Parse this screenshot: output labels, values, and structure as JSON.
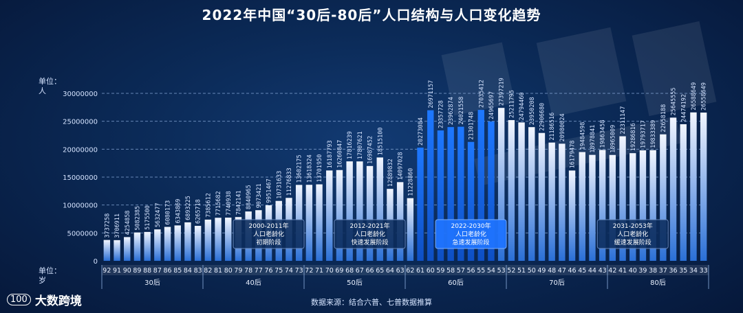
{
  "title": "2022年中国“30后-80后”人口结构与人口变化趋势",
  "y_unit": [
    "单位：",
    "人"
  ],
  "x_unit": [
    "单位：",
    "岁"
  ],
  "source": "数据来源：结合六普、七普数据推算",
  "logo": {
    "mark": "100",
    "name": "大数跨境"
  },
  "colors": {
    "bar_light": "#f2f6ff",
    "bar_dark": "#2a6fd6",
    "bar_highlight": "#1e78ff",
    "grid": "#8fb0e0",
    "text": "#d6e4ff",
    "annot_bg": "#0c2c5c",
    "annot_highlight": "#1f74ff"
  },
  "chart_data": {
    "type": "bar",
    "title": "2022年中国“30后-80后”人口结构与人口变化趋势",
    "ylabel": "人",
    "xlabel": "岁",
    "ylim": [
      0,
      30000000
    ],
    "yticks": [
      0,
      5000000,
      10000000,
      15000000,
      20000000,
      25000000,
      30000000
    ],
    "categories": [
      "92",
      "91",
      "90",
      "89",
      "88",
      "87",
      "86",
      "85",
      "84",
      "83",
      "82",
      "81",
      "80",
      "79",
      "78",
      "77",
      "76",
      "75",
      "74",
      "73",
      "72",
      "71",
      "70",
      "69",
      "68",
      "67",
      "66",
      "65",
      "64",
      "63",
      "62",
      "61",
      "60",
      "59",
      "58",
      "57",
      "56",
      "55",
      "54",
      "53",
      "52",
      "51",
      "50",
      "49",
      "48",
      "47",
      "46",
      "45",
      "44",
      "43",
      "42",
      "41",
      "40",
      "39",
      "38",
      "37",
      "36",
      "35",
      "34",
      "33"
    ],
    "values": [
      3737258,
      3706911,
      4254858,
      5082385,
      5175500,
      5632477,
      6080173,
      6343869,
      6893225,
      6265718,
      7385612,
      7715682,
      7740938,
      7842141,
      8840965,
      9073421,
      9951467,
      10731633,
      11276833,
      13602175,
      13618324,
      13701950,
      16187793,
      16260847,
      17816239,
      17807621,
      16987452,
      18515100,
      12889832,
      14097028,
      11228860,
      20273084,
      26971157,
      23357728,
      23962874,
      24021558,
      21301748,
      27035412,
      24965697,
      27397219,
      25211795,
      24794460,
      23950208,
      22906680,
      21186516,
      20980024,
      16179478,
      19484598,
      18978841,
      19863458,
      18965009,
      22311147,
      19286816,
      19793717,
      19833389,
      22658188,
      25645555,
      24474192,
      26588649,
      26558649
    ],
    "labels": [
      "3737258",
      "3706911",
      "4254858",
      "5082385",
      "5175500",
      "5632477",
      "6080173",
      "6343869",
      "6893225",
      "6265718",
      "7385612",
      "7715682",
      "7740938",
      "7842141",
      "8840965",
      "9073421",
      "9951467",
      "10731633",
      "11276833",
      "13602175",
      "13618324",
      "13701950",
      "16187793",
      "16260847",
      "17816239",
      "17807621",
      "16987452",
      "18515100",
      "12889832",
      "14097028",
      "11228860",
      "20273084",
      "26971157",
      "23357728",
      "23962874",
      "24021558",
      "21301748",
      "27035412",
      "24965697",
      "27397219",
      "25211795",
      "24794460",
      "23950208",
      "22906680",
      "21186516",
      "20980024",
      "16179478",
      "19484598",
      "18978841",
      "19863458",
      "18965009",
      "22311147",
      "19286816",
      "19793717",
      "19833389",
      "22658188",
      "25645555",
      "24474192",
      "26588649",
      "26558649"
    ],
    "highlight_range": [
      31,
      38
    ],
    "groups": [
      {
        "label": "30后",
        "start": 0,
        "end": 9
      },
      {
        "label": "40后",
        "start": 10,
        "end": 19
      },
      {
        "label": "50后",
        "start": 20,
        "end": 29
      },
      {
        "label": "60后",
        "start": 30,
        "end": 39
      },
      {
        "label": "70后",
        "start": 40,
        "end": 49
      },
      {
        "label": "80后",
        "start": 50,
        "end": 59
      }
    ],
    "annotations": [
      {
        "lines": [
          "2000-2011年",
          "人口老龄化",
          "初期阶段"
        ],
        "start": 13,
        "end": 19,
        "highlight": false
      },
      {
        "lines": [
          "2012-2021年",
          "人口老龄化",
          "快速发展阶段"
        ],
        "start": 23,
        "end": 29,
        "highlight": false
      },
      {
        "lines": [
          "2022-2030年",
          "人口老龄化",
          "急速发展阶段"
        ],
        "start": 33,
        "end": 39,
        "highlight": true
      },
      {
        "lines": [
          "2031-2053年",
          "人口老龄化",
          "缓速发展阶段"
        ],
        "start": 49,
        "end": 55,
        "highlight": false
      }
    ]
  }
}
